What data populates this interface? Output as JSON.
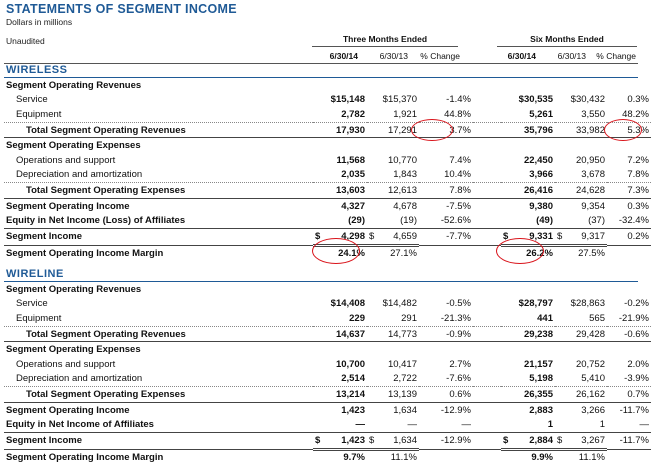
{
  "title": "STATEMENTS OF SEGMENT INCOME",
  "subtitle": "Dollars in millions",
  "unaudited": "Unaudited",
  "periods": {
    "three": "Three Months Ended",
    "six": "Six Months Ended"
  },
  "columns": [
    "6/30/14",
    "6/30/13",
    "% Change",
    "6/30/14",
    "6/30/13",
    "% Change"
  ],
  "wireless": {
    "heading": "WIRELESS",
    "rows": [
      {
        "label": "Segment Operating Revenues",
        "kind": "hdr",
        "v": [
          "",
          "",
          "",
          "",
          "",
          ""
        ]
      },
      {
        "label": "Service",
        "kind": "item",
        "v": [
          "$15,148",
          "$15,370",
          "-1.4%",
          "$30,535",
          "$30,432",
          "0.3%"
        ]
      },
      {
        "label": "Equipment",
        "kind": "item",
        "v": [
          "2,782",
          "1,921",
          "44.8%",
          "5,261",
          "3,550",
          "48.2%"
        ]
      },
      {
        "label": "Total Segment Operating Revenues",
        "kind": "sub",
        "v": [
          "17,930",
          "17,291",
          "3.7%",
          "35,796",
          "33,982",
          "5.3%"
        ]
      },
      {
        "label": "Segment Operating Expenses",
        "kind": "hdr",
        "v": [
          "",
          "",
          "",
          "",
          "",
          ""
        ]
      },
      {
        "label": "Operations and support",
        "kind": "item",
        "v": [
          "11,568",
          "10,770",
          "7.4%",
          "22,450",
          "20,950",
          "7.2%"
        ]
      },
      {
        "label": "Depreciation and amortization",
        "kind": "item",
        "v": [
          "2,035",
          "1,843",
          "10.4%",
          "3,966",
          "3,678",
          "7.8%"
        ]
      },
      {
        "label": "Total Segment Operating Expenses",
        "kind": "sub",
        "v": [
          "13,603",
          "12,613",
          "7.8%",
          "26,416",
          "24,628",
          "7.3%"
        ]
      },
      {
        "label": "Segment Operating Income",
        "kind": "tot",
        "v": [
          "4,327",
          "4,678",
          "-7.5%",
          "9,380",
          "9,354",
          "0.3%"
        ]
      },
      {
        "label": "Equity in Net Income (Loss) of Affiliates",
        "kind": "tot",
        "v": [
          "(29)",
          "(19)",
          "-52.6%",
          "(49)",
          "(37)",
          "-32.4%"
        ]
      },
      {
        "label": "Segment Income",
        "kind": "tot",
        "v": [
          "4,298",
          "4,659",
          "-7.7%",
          "9,331",
          "9,317",
          "0.2%"
        ]
      },
      {
        "label": "Segment Operating Income Margin",
        "kind": "tot",
        "v": [
          "24.1%",
          "27.1%",
          "",
          "26.2%",
          "27.5%",
          ""
        ]
      }
    ]
  },
  "wireline": {
    "heading": "WIRELINE",
    "rows": [
      {
        "label": "Segment Operating Revenues",
        "kind": "hdr",
        "v": [
          "",
          "",
          "",
          "",
          "",
          ""
        ]
      },
      {
        "label": "Service",
        "kind": "item",
        "v": [
          "$14,408",
          "$14,482",
          "-0.5%",
          "$28,797",
          "$28,863",
          "-0.2%"
        ]
      },
      {
        "label": "Equipment",
        "kind": "item",
        "v": [
          "229",
          "291",
          "-21.3%",
          "441",
          "565",
          "-21.9%"
        ]
      },
      {
        "label": "Total Segment Operating Revenues",
        "kind": "sub",
        "v": [
          "14,637",
          "14,773",
          "-0.9%",
          "29,238",
          "29,428",
          "-0.6%"
        ]
      },
      {
        "label": "Segment Operating Expenses",
        "kind": "hdr",
        "v": [
          "",
          "",
          "",
          "",
          "",
          ""
        ]
      },
      {
        "label": "Operations and support",
        "kind": "item",
        "v": [
          "10,700",
          "10,417",
          "2.7%",
          "21,157",
          "20,752",
          "2.0%"
        ]
      },
      {
        "label": "Depreciation and amortization",
        "kind": "item",
        "v": [
          "2,514",
          "2,722",
          "-7.6%",
          "5,198",
          "5,410",
          "-3.9%"
        ]
      },
      {
        "label": "Total Segment Operating Expenses",
        "kind": "sub",
        "v": [
          "13,214",
          "13,139",
          "0.6%",
          "26,355",
          "26,162",
          "0.7%"
        ]
      },
      {
        "label": "Segment Operating Income",
        "kind": "tot",
        "v": [
          "1,423",
          "1,634",
          "-12.9%",
          "2,883",
          "3,266",
          "-11.7%"
        ]
      },
      {
        "label": "Equity in Net Income of Affiliates",
        "kind": "tot",
        "v": [
          "—",
          "—",
          "—",
          "1",
          "1",
          "—"
        ]
      },
      {
        "label": "Segment Income",
        "kind": "tot",
        "v": [
          "1,423",
          "1,634",
          "-12.9%",
          "2,884",
          "3,267",
          "-11.7%"
        ]
      },
      {
        "label": "Segment Operating Income Margin",
        "kind": "tot",
        "v": [
          "9.7%",
          "11.1%",
          "",
          "9.9%",
          "11.1%",
          ""
        ]
      }
    ]
  },
  "currency_symbol": "$",
  "accent_color": "#1f5a96",
  "annotation_color": "#d9141b"
}
